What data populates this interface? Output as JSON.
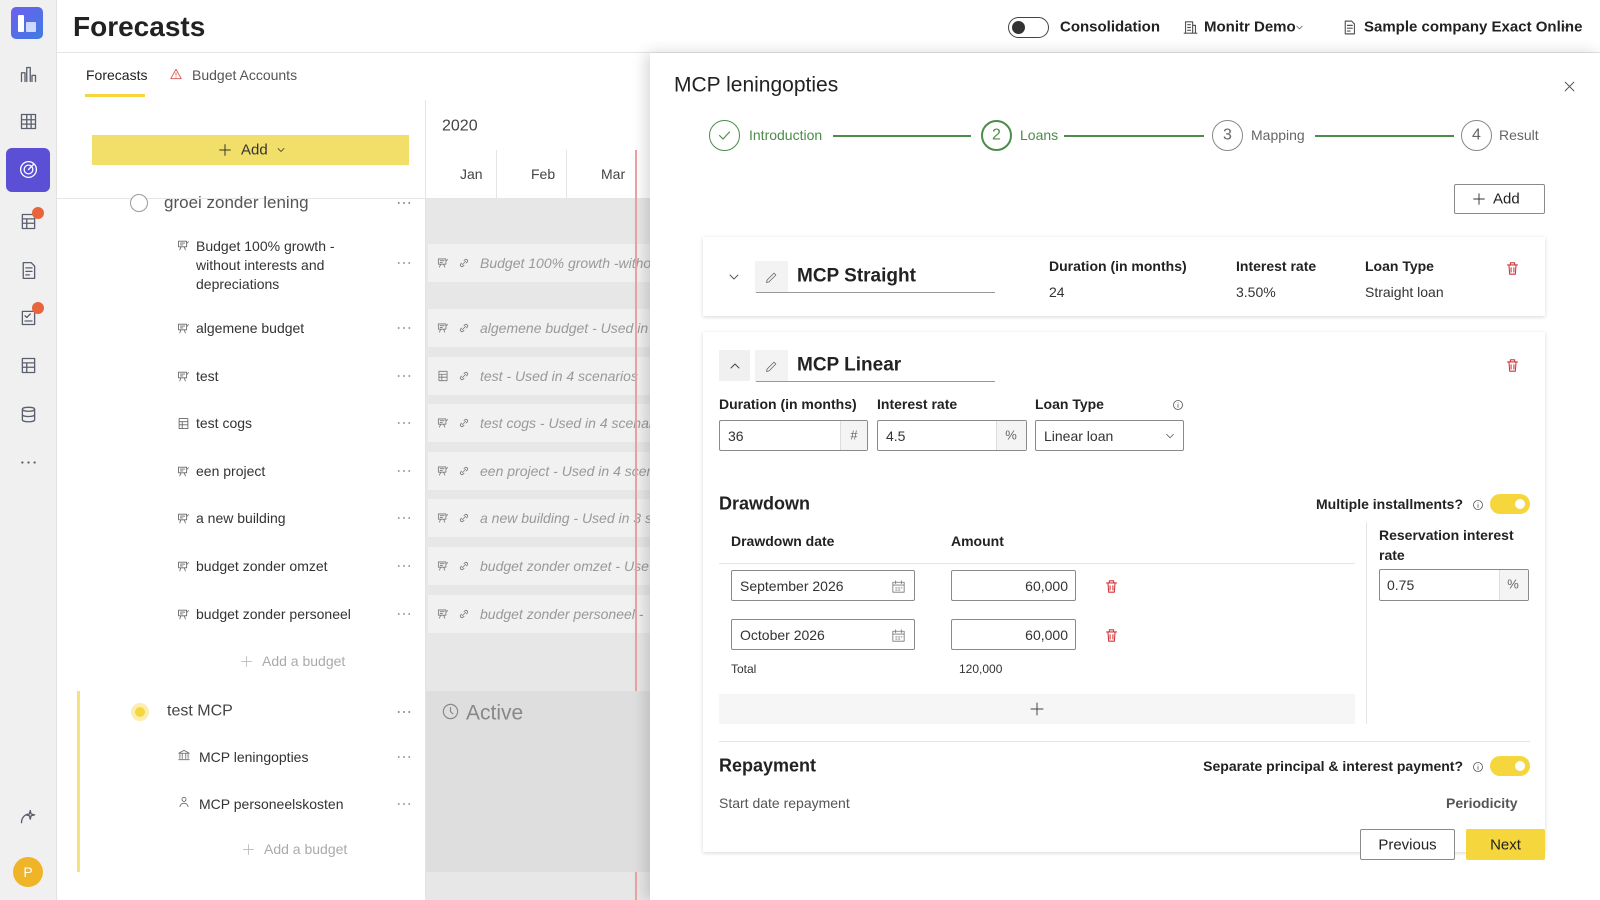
{
  "header": {
    "title": "Forecasts",
    "consolidation": "Consolidation",
    "organization": "Monitr Demo",
    "company": "Sample company Exact Online"
  },
  "sidebar": {
    "avatar": "P"
  },
  "tabs": [
    "Forecasts",
    "Budget Accounts"
  ],
  "planner": {
    "add": "Add",
    "year": "2020",
    "months": [
      "Jan",
      "Feb",
      "Mar"
    ],
    "groups": [
      {
        "name": "groei zonder lening",
        "budgets": [
          {
            "name": "Budget 100% growth - without interests and depreciations",
            "timeline": "Budget 100% growth -witho"
          },
          {
            "name": "algemene budget",
            "timeline": "algemene budget - Used in"
          },
          {
            "name": "test",
            "timeline": "test - Used in 4 scenarios"
          },
          {
            "name": "test cogs",
            "timeline": "test cogs - Used in 4 scenar"
          },
          {
            "name": "een project",
            "timeline": "een project - Used in 4 scer"
          },
          {
            "name": "a new building",
            "timeline": "a new building - Used in 3 s"
          },
          {
            "name": "budget zonder omzet",
            "timeline": "budget zonder omzet - Use"
          },
          {
            "name": "budget zonder personeel",
            "timeline": "budget zonder personeel -"
          }
        ],
        "add_budget": "Add a budget"
      },
      {
        "name": "test MCP",
        "status": "Active",
        "budgets": [
          {
            "name": "MCP leningopties"
          },
          {
            "name": "MCP personeelskosten"
          }
        ],
        "add_budget": "Add a budget"
      }
    ]
  },
  "panel": {
    "title": "MCP leningopties",
    "steps": [
      {
        "label": "Introduction"
      },
      {
        "number": "2",
        "label": "Loans"
      },
      {
        "number": "3",
        "label": "Mapping"
      },
      {
        "number": "4",
        "label": "Result"
      }
    ],
    "add": "Add",
    "loans": [
      {
        "name": "MCP Straight",
        "fields": [
          {
            "label": "Duration (in months)",
            "value": "24"
          },
          {
            "label": "Interest rate",
            "value": "3.50%"
          },
          {
            "label": "Loan Type",
            "value": "Straight loan"
          }
        ]
      },
      {
        "name": "MCP Linear",
        "fields": [
          {
            "label": "Duration (in months)",
            "value": "36",
            "unit": "#"
          },
          {
            "label": "Interest rate",
            "value": "4.5",
            "unit": "%"
          },
          {
            "label": "Loan Type",
            "value": "Linear loan"
          }
        ],
        "drawdown": {
          "title": "Drawdown",
          "multiple_installments": "Multiple installments?",
          "columns": [
            "Drawdown date",
            "Amount"
          ],
          "rows": [
            [
              "September 2026",
              "60,000"
            ],
            [
              "October 2026",
              "60,000"
            ]
          ],
          "total_label": "Total",
          "total": "120,000",
          "reservation_label": "Reservation interest rate",
          "reservation_value": "0.75",
          "reservation_unit": "%"
        },
        "repayment": {
          "title": "Repayment",
          "separate": "Separate principal & interest payment?",
          "start_date": "Start date repayment",
          "periodicity": "Periodicity"
        }
      }
    ]
  },
  "buttons": {
    "previous": "Previous",
    "next": "Next"
  }
}
